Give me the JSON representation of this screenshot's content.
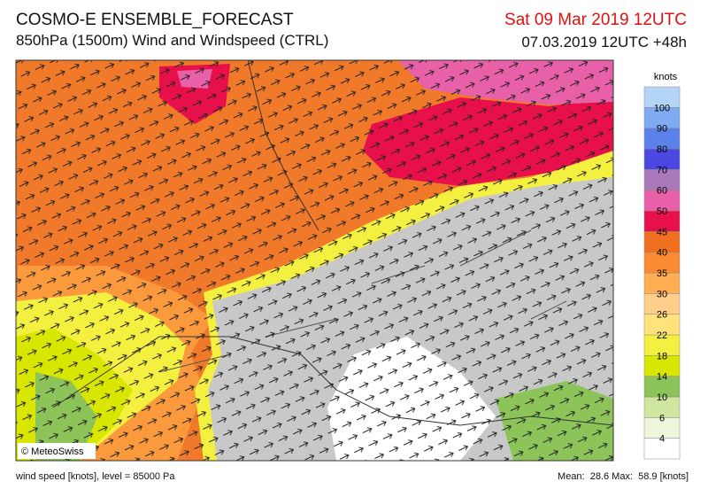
{
  "header": {
    "title": "COSMO-E ENSEMBLE_FORECAST",
    "subtitle": "850hPa (1500m) Wind and Windspeed (CTRL)",
    "valid_time": "Sat 09 Mar 2019 12UTC",
    "run_time": "07.03.2019 12UTC +48h"
  },
  "map": {
    "credit": "© MeteoSwiss"
  },
  "colorbar": {
    "unit": "knots",
    "levels": [
      4,
      6,
      10,
      14,
      18,
      22,
      26,
      30,
      35,
      40,
      45,
      50,
      60,
      70,
      80,
      90,
      100
    ],
    "colors": [
      "#ffffff",
      "#eef6dc",
      "#cfe6a0",
      "#8cc45a",
      "#d9e600",
      "#f4f040",
      "#ffe27a",
      "#ffce8a",
      "#ffae52",
      "#fb8c34",
      "#f07020",
      "#e8104a",
      "#e860a8",
      "#a878b8",
      "#4a48e0",
      "#5a82ea",
      "#80aaf2",
      "#b4d4f8"
    ]
  },
  "footer": {
    "left": "wind speed [knots], level = 85000 Pa",
    "right": "Mean:  28.6 Max:  58.9 [knots]"
  }
}
